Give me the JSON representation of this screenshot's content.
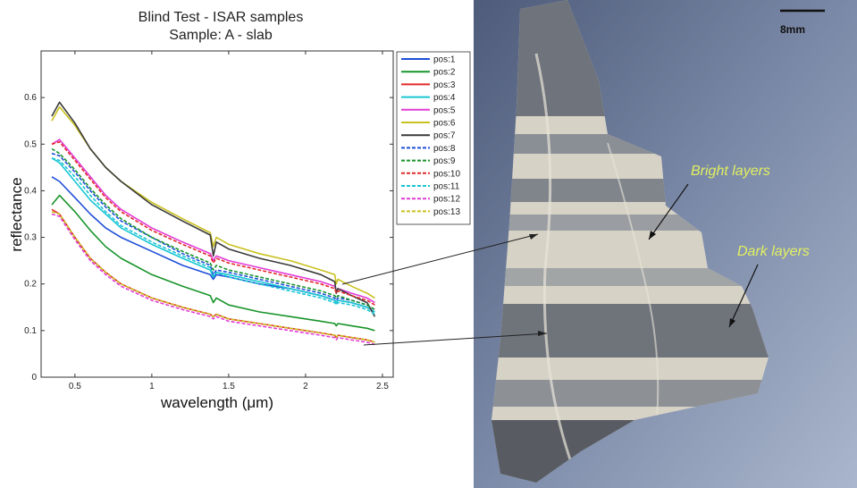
{
  "chart_data": {
    "type": "line",
    "title": "Blind Test - ISAR samples",
    "subtitle": "Sample: A - slab",
    "xlabel": "wavelength (μm)",
    "ylabel": "reflectance",
    "xlim": [
      0.28,
      2.57
    ],
    "ylim": [
      0,
      0.7
    ],
    "xticks": [
      0.5,
      1,
      1.5,
      2,
      2.5
    ],
    "xtick_labels": [
      "0.5",
      "1",
      "1.5",
      "2",
      "2.5"
    ],
    "yticks": [
      0,
      0.1,
      0.2,
      0.3,
      0.4,
      0.5,
      0.6
    ],
    "ytick_labels": [
      "0",
      "0.1",
      "0.2",
      "0.3",
      "0.4",
      "0.5",
      "0.6"
    ],
    "grid": false,
    "legend": "top-right",
    "x": [
      0.35,
      0.4,
      0.5,
      0.6,
      0.7,
      0.8,
      1.0,
      1.2,
      1.38,
      1.4,
      1.42,
      1.5,
      1.7,
      1.9,
      2.1,
      2.19,
      2.2,
      2.21,
      2.3,
      2.4,
      2.45
    ],
    "series": [
      {
        "name": "pos:1",
        "color": "#1f4fd8",
        "style": "solid",
        "values": [
          0.43,
          0.42,
          0.385,
          0.35,
          0.32,
          0.3,
          0.27,
          0.24,
          0.22,
          0.21,
          0.22,
          0.215,
          0.2,
          0.19,
          0.175,
          0.165,
          0.16,
          0.165,
          0.16,
          0.15,
          0.14
        ]
      },
      {
        "name": "pos:2",
        "color": "#18942a",
        "style": "solid",
        "values": [
          0.37,
          0.39,
          0.355,
          0.315,
          0.28,
          0.255,
          0.22,
          0.195,
          0.175,
          0.16,
          0.17,
          0.155,
          0.14,
          0.13,
          0.12,
          0.115,
          0.11,
          0.115,
          0.11,
          0.105,
          0.1
        ]
      },
      {
        "name": "pos:3",
        "color": "#e32a2a",
        "style": "solid",
        "values": [
          0.36,
          0.35,
          0.3,
          0.255,
          0.225,
          0.2,
          0.17,
          0.15,
          0.135,
          0.13,
          0.135,
          0.125,
          0.115,
          0.105,
          0.095,
          0.09,
          0.085,
          0.09,
          0.085,
          0.08,
          0.075
        ]
      },
      {
        "name": "pos:4",
        "color": "#19c6d4",
        "style": "solid",
        "values": [
          0.47,
          0.46,
          0.42,
          0.38,
          0.35,
          0.32,
          0.285,
          0.255,
          0.23,
          0.215,
          0.225,
          0.22,
          0.205,
          0.19,
          0.175,
          0.165,
          0.16,
          0.165,
          0.16,
          0.15,
          0.14
        ]
      },
      {
        "name": "pos:5",
        "color": "#e23bd6",
        "style": "solid",
        "values": [
          0.5,
          0.51,
          0.47,
          0.43,
          0.39,
          0.36,
          0.32,
          0.29,
          0.265,
          0.25,
          0.26,
          0.25,
          0.235,
          0.22,
          0.205,
          0.195,
          0.185,
          0.19,
          0.18,
          0.17,
          0.16
        ]
      },
      {
        "name": "pos:6",
        "color": "#c9c120",
        "style": "solid",
        "values": [
          0.55,
          0.58,
          0.54,
          0.49,
          0.45,
          0.42,
          0.375,
          0.34,
          0.31,
          0.28,
          0.3,
          0.285,
          0.265,
          0.25,
          0.23,
          0.22,
          0.2,
          0.21,
          0.195,
          0.18,
          0.17
        ]
      },
      {
        "name": "pos:7",
        "color": "#3a3a3a",
        "style": "solid",
        "values": [
          0.56,
          0.59,
          0.545,
          0.49,
          0.45,
          0.42,
          0.37,
          0.335,
          0.305,
          0.26,
          0.29,
          0.275,
          0.255,
          0.24,
          0.22,
          0.205,
          0.18,
          0.19,
          0.175,
          0.16,
          0.13
        ]
      },
      {
        "name": "pos:8",
        "color": "#1f4fd8",
        "style": "dashed",
        "values": [
          0.48,
          0.475,
          0.44,
          0.4,
          0.365,
          0.335,
          0.3,
          0.265,
          0.24,
          0.22,
          0.23,
          0.225,
          0.21,
          0.195,
          0.18,
          0.17,
          0.165,
          0.17,
          0.165,
          0.155,
          0.145
        ]
      },
      {
        "name": "pos:9",
        "color": "#18942a",
        "style": "dashed",
        "values": [
          0.49,
          0.48,
          0.445,
          0.405,
          0.37,
          0.34,
          0.3,
          0.27,
          0.245,
          0.23,
          0.24,
          0.23,
          0.215,
          0.2,
          0.185,
          0.175,
          0.17,
          0.175,
          0.165,
          0.155,
          0.145
        ]
      },
      {
        "name": "pos:10",
        "color": "#e32a2a",
        "style": "dashed",
        "values": [
          0.5,
          0.505,
          0.465,
          0.425,
          0.385,
          0.355,
          0.315,
          0.285,
          0.26,
          0.245,
          0.255,
          0.245,
          0.23,
          0.215,
          0.2,
          0.19,
          0.18,
          0.185,
          0.175,
          0.165,
          0.155
        ]
      },
      {
        "name": "pos:11",
        "color": "#19c6d4",
        "style": "dashed",
        "values": [
          0.47,
          0.465,
          0.43,
          0.39,
          0.355,
          0.325,
          0.29,
          0.26,
          0.235,
          0.215,
          0.225,
          0.215,
          0.2,
          0.185,
          0.17,
          0.16,
          0.155,
          0.16,
          0.155,
          0.145,
          0.135
        ]
      },
      {
        "name": "pos:12",
        "color": "#e23bd6",
        "style": "dashed",
        "values": [
          0.35,
          0.345,
          0.295,
          0.25,
          0.22,
          0.195,
          0.165,
          0.145,
          0.13,
          0.125,
          0.13,
          0.12,
          0.11,
          0.1,
          0.09,
          0.085,
          0.08,
          0.085,
          0.08,
          0.075,
          0.07
        ]
      },
      {
        "name": "pos:13",
        "color": "#c9c120",
        "style": "dashed",
        "values": [
          0.355,
          0.35,
          0.3,
          0.255,
          0.225,
          0.2,
          0.17,
          0.15,
          0.135,
          0.13,
          0.135,
          0.125,
          0.115,
          0.105,
          0.095,
          0.09,
          0.085,
          0.09,
          0.085,
          0.08,
          0.075
        ]
      }
    ]
  },
  "photo": {
    "scale_bar_label": "8mm",
    "annotations": {
      "bright": "Bright layers",
      "dark": "Dark layers"
    },
    "colors": {
      "background": "#6a7a98",
      "rock_light": "#d6d2c6",
      "rock_dark": "#7a7f86",
      "annotation_text": "#e2f060"
    }
  }
}
